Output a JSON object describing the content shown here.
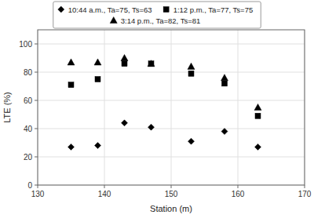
{
  "chart_data": {
    "type": "scatter",
    "xlabel": "Station (m)",
    "ylabel": "LTE (%)",
    "x": [
      135,
      139,
      143,
      147,
      153,
      158,
      163
    ],
    "series": [
      {
        "name": "10:44 a.m., Ta=75, Ts=63",
        "marker": "diamond",
        "color": "#000000",
        "values": [
          27,
          28,
          44,
          41,
          31,
          38,
          27
        ]
      },
      {
        "name": "1:12 p.m., Ta=77, Ts=75",
        "marker": "square",
        "color": "#000000",
        "values": [
          71,
          75,
          86,
          86,
          79,
          72,
          49
        ]
      },
      {
        "name": "3:14 p.m., Ta=82, Ts=81",
        "marker": "triangle",
        "color": "#000000",
        "values": [
          87,
          87,
          90,
          86,
          84,
          76,
          55
        ]
      }
    ],
    "xlim": [
      130,
      170
    ],
    "ylim": [
      0,
      110
    ],
    "xticks": [
      130,
      140,
      150,
      160,
      170
    ],
    "yticks": [
      0,
      20,
      40,
      60,
      80,
      100
    ],
    "grid": true
  }
}
